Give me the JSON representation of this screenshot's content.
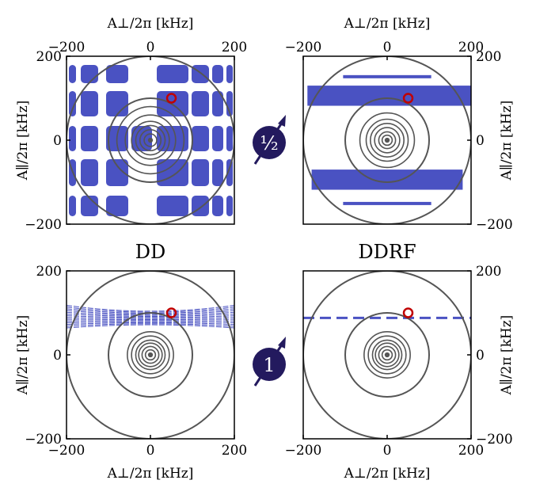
{
  "colors": {
    "region": "#4a52c2",
    "circle": "#555555",
    "marker": "#c00000",
    "axis": "#000000",
    "badge": "#231a5e"
  },
  "badges": {
    "spin_half_label": "½",
    "spin_one_label": "1"
  },
  "chart_data": [
    {
      "panel": "top-left",
      "type": "region-map",
      "title": "",
      "xlabel": "A⊥/2π [kHz]",
      "xlabel_position": "top",
      "ylabel": "A∥/2π [kHz]",
      "ylabel_position": "left",
      "xlim": [
        -200,
        200
      ],
      "ylim": [
        -200,
        200
      ],
      "xticks": [
        -200,
        0,
        200
      ],
      "yticks": [
        -200,
        0,
        200
      ],
      "xtick_labels": [
        "−200",
        "0",
        "200"
      ],
      "ytick_labels": [
        "−200",
        "0",
        "200"
      ],
      "region_pattern": "grid",
      "circle_radii": [
        200,
        100,
        80,
        60,
        45,
        35,
        25,
        15
      ],
      "marker": {
        "x": 50,
        "y": 100
      }
    },
    {
      "panel": "top-right",
      "type": "region-map",
      "title": "",
      "xlabel": "A⊥/2π [kHz]",
      "xlabel_position": "top",
      "ylabel": "A∥/2π [kHz]",
      "ylabel_position": "right",
      "xlim": [
        -200,
        200
      ],
      "ylim": [
        -200,
        200
      ],
      "xticks": [
        -200,
        0,
        200
      ],
      "yticks": [
        -200,
        0,
        200
      ],
      "xtick_labels": [
        "−200",
        "0",
        "200"
      ],
      "ytick_labels": [
        "−200",
        "0",
        "200"
      ],
      "region_pattern": "bands",
      "circle_radii": [
        200,
        100,
        65,
        50,
        40,
        30,
        20,
        12
      ],
      "marker": {
        "x": 50,
        "y": 100
      }
    },
    {
      "panel": "bottom-left",
      "type": "region-map",
      "title": "DD",
      "xlabel": "A⊥/2π [kHz]",
      "xlabel_position": "bottom",
      "ylabel": "A∥/2π [kHz]",
      "ylabel_position": "left",
      "xlim": [
        -200,
        200
      ],
      "ylim": [
        -200,
        200
      ],
      "xticks": [
        -200,
        0,
        200
      ],
      "yticks": [
        -200,
        0,
        200
      ],
      "xtick_labels": [
        "−200",
        "0",
        "200"
      ],
      "ytick_labels": [
        "−200",
        "0",
        "200"
      ],
      "region_pattern": "hatched-arc",
      "circle_radii": [
        200,
        100,
        55,
        45,
        35,
        28,
        20,
        12
      ],
      "marker": {
        "x": 50,
        "y": 100
      }
    },
    {
      "panel": "bottom-right",
      "type": "region-map",
      "title": "DDRF",
      "xlabel": "A⊥/2π [kHz]",
      "xlabel_position": "bottom",
      "ylabel": "A∥/2π [kHz]",
      "ylabel_position": "right",
      "xlim": [
        -200,
        200
      ],
      "ylim": [
        -200,
        200
      ],
      "xticks": [
        -200,
        0,
        200
      ],
      "yticks": [
        -200,
        0,
        200
      ],
      "xtick_labels": [
        "−200",
        "0",
        "200"
      ],
      "ytick_labels": [
        "−200",
        "0",
        "200"
      ],
      "region_pattern": "dashed-line",
      "circle_radii": [
        200,
        100,
        55,
        45,
        35,
        28,
        20,
        12
      ],
      "marker": {
        "x": 50,
        "y": 100
      }
    }
  ]
}
